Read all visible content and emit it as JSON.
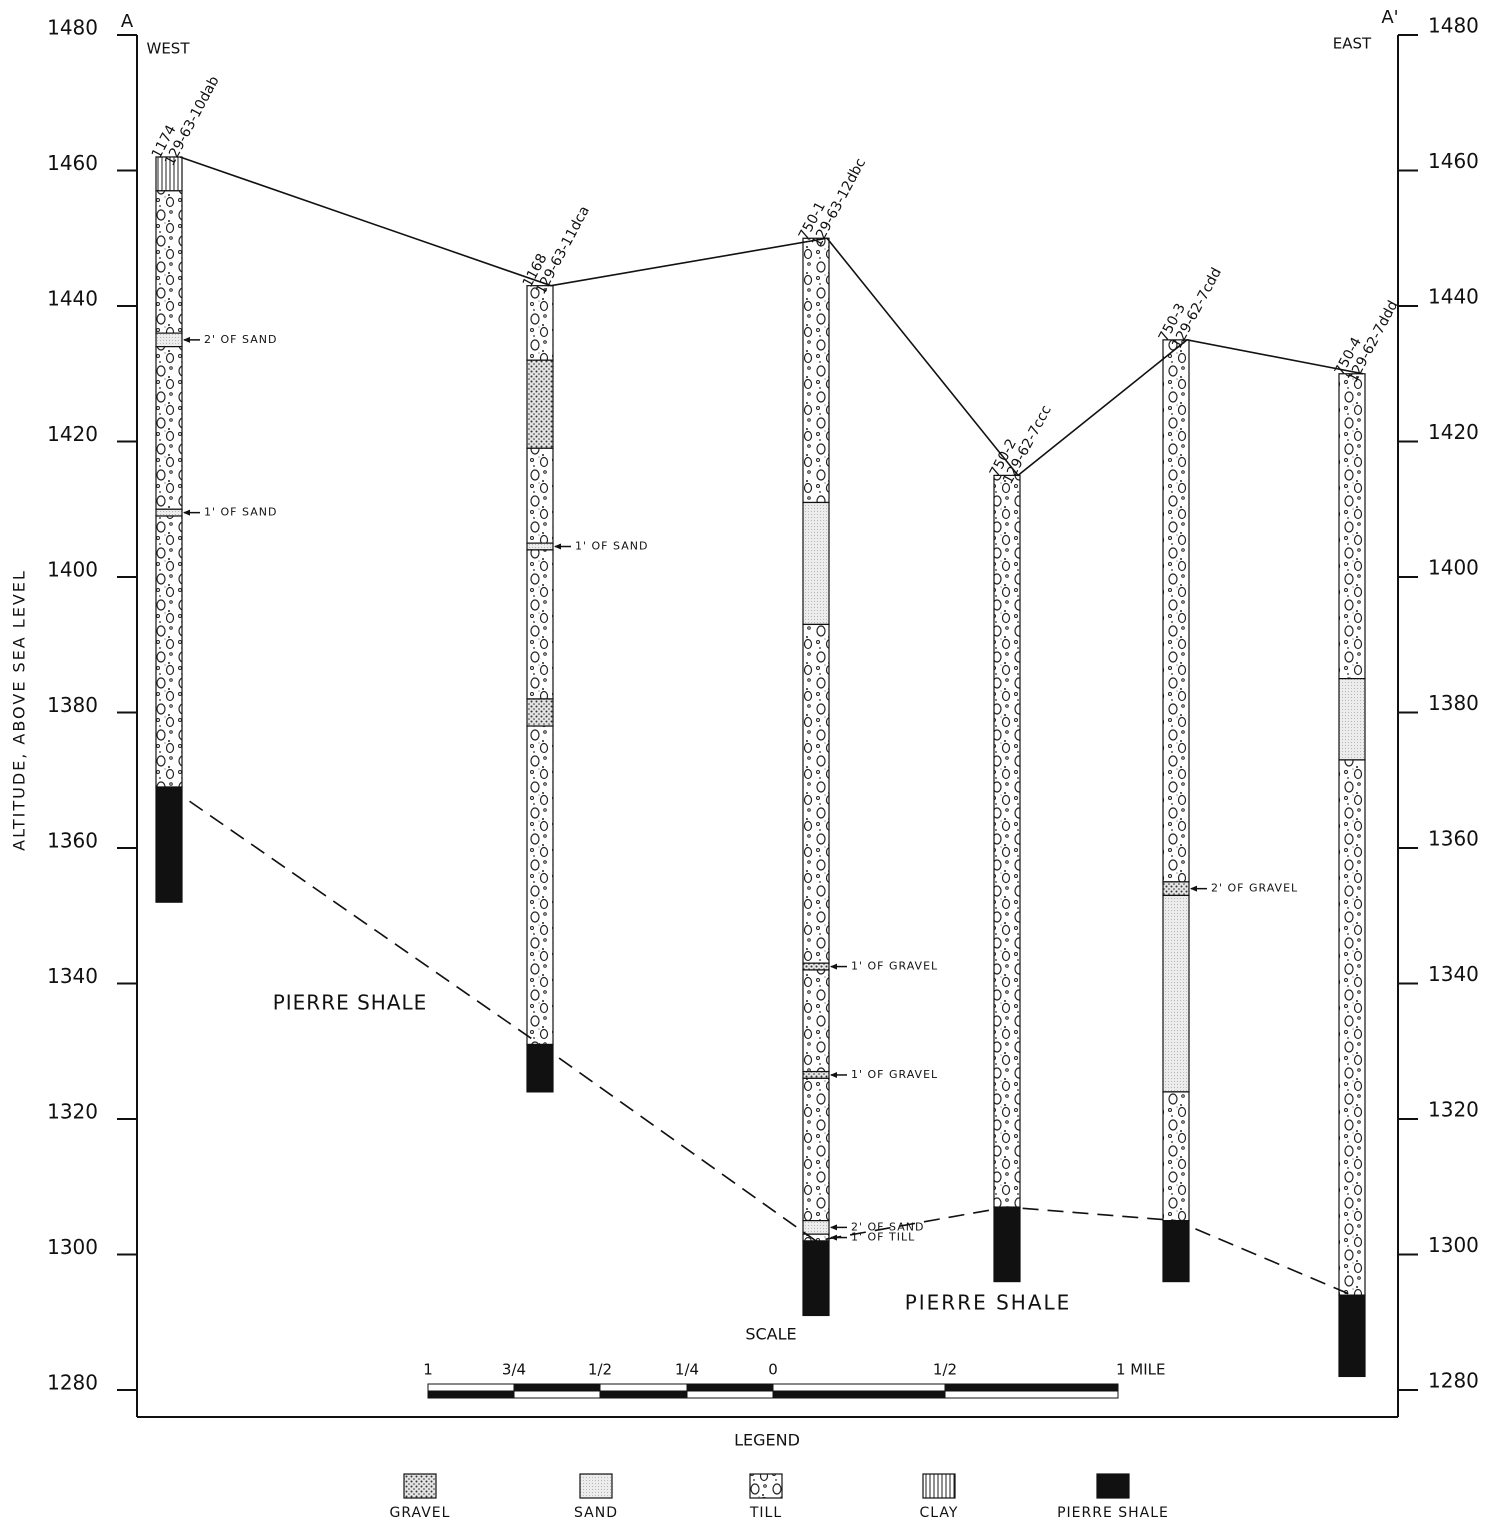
{
  "axis": {
    "title": "ALTITUDE, ABOVE SEA LEVEL",
    "ticks": [
      1480,
      1460,
      1440,
      1420,
      1400,
      1380,
      1360,
      1340,
      1320,
      1300,
      1280
    ],
    "range": [
      1280,
      1480
    ]
  },
  "ends": {
    "left": {
      "mark": "A",
      "side": "WEST"
    },
    "right": {
      "mark": "A'",
      "side": "EAST"
    }
  },
  "wells": [
    {
      "id": "1174",
      "location": "129-63-10dab",
      "layers": [
        {
          "type": "clay",
          "top": 1462,
          "bottom": 1457
        },
        {
          "type": "till",
          "top": 1457,
          "bottom": 1436
        },
        {
          "type": "sand",
          "top": 1436,
          "bottom": 1434,
          "note": "2' OF SAND"
        },
        {
          "type": "till",
          "top": 1434,
          "bottom": 1410
        },
        {
          "type": "sand",
          "top": 1410,
          "bottom": 1409,
          "note": "1' OF SAND"
        },
        {
          "type": "till",
          "top": 1409,
          "bottom": 1369
        },
        {
          "type": "shale",
          "top": 1369,
          "bottom": 1352
        }
      ]
    },
    {
      "id": "1168",
      "location": "129-63-11dca",
      "layers": [
        {
          "type": "till",
          "top": 1443,
          "bottom": 1432
        },
        {
          "type": "gravel",
          "top": 1432,
          "bottom": 1419
        },
        {
          "type": "till",
          "top": 1419,
          "bottom": 1405
        },
        {
          "type": "sand",
          "top": 1405,
          "bottom": 1404,
          "note": "1' OF SAND"
        },
        {
          "type": "till",
          "top": 1404,
          "bottom": 1382
        },
        {
          "type": "gravel",
          "top": 1382,
          "bottom": 1378
        },
        {
          "type": "till",
          "top": 1378,
          "bottom": 1331
        },
        {
          "type": "shale",
          "top": 1331,
          "bottom": 1324
        }
      ]
    },
    {
      "id": "750-1",
      "location": "129-63-12dbc",
      "layers": [
        {
          "type": "till",
          "top": 1450,
          "bottom": 1411
        },
        {
          "type": "sand",
          "top": 1411,
          "bottom": 1393
        },
        {
          "type": "till",
          "top": 1393,
          "bottom": 1343
        },
        {
          "type": "gravel",
          "top": 1343,
          "bottom": 1342,
          "note": "1' OF GRAVEL"
        },
        {
          "type": "till",
          "top": 1342,
          "bottom": 1327
        },
        {
          "type": "gravel",
          "top": 1327,
          "bottom": 1326,
          "note": "1' OF GRAVEL"
        },
        {
          "type": "till",
          "top": 1326,
          "bottom": 1305
        },
        {
          "type": "sand",
          "top": 1305,
          "bottom": 1303,
          "note": "2' OF SAND"
        },
        {
          "type": "till",
          "top": 1303,
          "bottom": 1302,
          "note": "1' OF TILL"
        },
        {
          "type": "shale",
          "top": 1302,
          "bottom": 1291
        }
      ]
    },
    {
      "id": "750-2",
      "location": "129-62-7ccc",
      "layers": [
        {
          "type": "till",
          "top": 1415,
          "bottom": 1307
        },
        {
          "type": "shale",
          "top": 1307,
          "bottom": 1296
        }
      ]
    },
    {
      "id": "750-3",
      "location": "129-62-7cdd",
      "layers": [
        {
          "type": "till",
          "top": 1435,
          "bottom": 1355
        },
        {
          "type": "gravel",
          "top": 1355,
          "bottom": 1353,
          "note": "2' OF GRAVEL"
        },
        {
          "type": "sand",
          "top": 1353,
          "bottom": 1324
        },
        {
          "type": "till",
          "top": 1324,
          "bottom": 1305
        },
        {
          "type": "shale",
          "top": 1305,
          "bottom": 1296
        }
      ]
    },
    {
      "id": "750-4",
      "location": "129-62-7ddd",
      "layers": [
        {
          "type": "till",
          "top": 1430,
          "bottom": 1385
        },
        {
          "type": "sand",
          "top": 1385,
          "bottom": 1373
        },
        {
          "type": "till",
          "top": 1373,
          "bottom": 1294
        },
        {
          "type": "shale",
          "top": 1294,
          "bottom": 1282
        }
      ]
    }
  ],
  "labels": [
    "PIERRE SHALE",
    "PIERRE SHALE"
  ],
  "scale": {
    "title": "SCALE",
    "ticks": [
      "1",
      "3/4",
      "1/2",
      "1/4",
      "0",
      "1/2",
      "1 MILE"
    ]
  },
  "legend": {
    "title": "LEGEND",
    "items": [
      {
        "type": "gravel",
        "label": "GRAVEL"
      },
      {
        "type": "sand",
        "label": "SAND"
      },
      {
        "type": "till",
        "label": "TILL"
      },
      {
        "type": "clay",
        "label": "CLAY"
      },
      {
        "type": "shale",
        "label": "PIERRE SHALE"
      }
    ]
  }
}
